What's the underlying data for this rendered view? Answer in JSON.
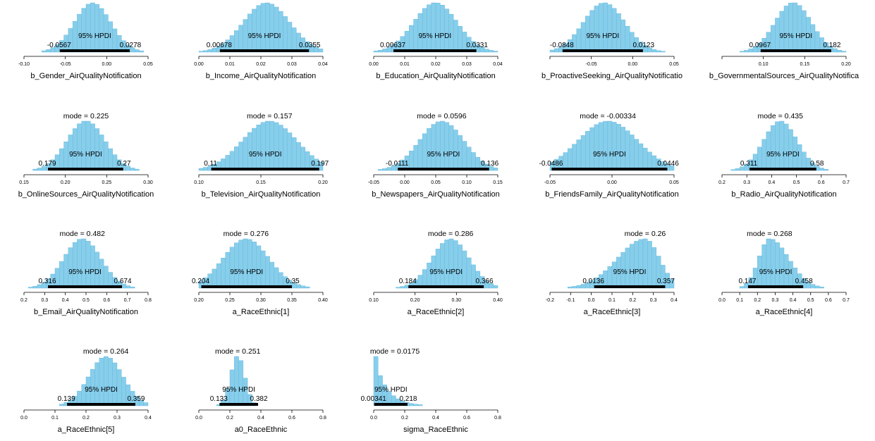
{
  "hpdi_label": "95% HPDI",
  "mode_prefix": "mode = ",
  "colors": {
    "bar": "#87ceeb",
    "bar_edge": "#5fb3d9",
    "hpdi": "#000000",
    "text": "#000000"
  },
  "chart_data": [
    {
      "type": "histogram",
      "xlabel": "b_Gender_AirQualityNotification",
      "mode": "-0.0171",
      "hpdi": [
        "-0.0567",
        "0.0278"
      ],
      "xlim": [
        -0.1,
        0.05
      ],
      "ticks": [
        "-0.10",
        "-0.05",
        "0.00",
        "0.05"
      ],
      "tick_values": [
        -0.1,
        -0.05,
        0,
        0.05
      ],
      "mode_value": -0.0171,
      "spread": 0.022
    },
    {
      "type": "histogram",
      "xlabel": "b_Income_AirQualityNotification",
      "mode": "0.0218",
      "hpdi": [
        "0.00678",
        "0.0355"
      ],
      "xlim": [
        0,
        0.04
      ],
      "ticks": [
        "0.00",
        "0.01",
        "0.02",
        "0.03",
        "0.04"
      ],
      "tick_values": [
        0,
        0.01,
        0.02,
        0.03,
        0.04
      ],
      "mode_value": 0.0218,
      "spread": 0.0075
    },
    {
      "type": "histogram",
      "xlabel": "b_Education_AirQualityNotification",
      "mode": "0.0199",
      "hpdi": [
        "0.00637",
        "0.0331"
      ],
      "xlim": [
        0,
        0.04
      ],
      "ticks": [
        "0.00",
        "0.01",
        "0.02",
        "0.03",
        "0.04"
      ],
      "tick_values": [
        0,
        0.01,
        0.02,
        0.03,
        0.04
      ],
      "mode_value": 0.0199,
      "spread": 0.007
    },
    {
      "type": "histogram",
      "xlabel": "b_ProactiveSeeking_AirQualityNotificatio",
      "mode": "-0.0346",
      "hpdi": [
        "-0.0848",
        "0.0123"
      ],
      "xlim": [
        -0.1,
        0.05
      ],
      "ticks": [
        "",
        "-0.05",
        "0.00",
        "0.05"
      ],
      "tick_values": [
        -0.1,
        -0.05,
        0,
        0.05
      ],
      "mode_value": -0.0346,
      "spread": 0.025
    },
    {
      "type": "histogram",
      "xlabel": "b_GovernmentalSources_AirQualityNotifica",
      "mode": "0.136",
      "hpdi": [
        "0.0967",
        "0.182"
      ],
      "xlim": [
        0.05,
        0.2
      ],
      "ticks": [
        "",
        "0.10",
        "0.15",
        "0.20"
      ],
      "tick_values": [
        0.05,
        0.1,
        0.15,
        0.2
      ],
      "mode_value": 0.136,
      "spread": 0.022
    },
    {
      "type": "histogram",
      "xlabel": "b_OnlineSources_AirQualityNotification",
      "mode": "0.225",
      "hpdi": [
        "0.179",
        "0.27"
      ],
      "xlim": [
        0.15,
        0.3
      ],
      "ticks": [
        "0.15",
        "0.20",
        "0.25",
        "0.30"
      ],
      "tick_values": [
        0.15,
        0.2,
        0.25,
        0.3
      ],
      "mode_value": 0.225,
      "spread": 0.023
    },
    {
      "type": "histogram",
      "xlabel": "b_Television_AirQualityNotification",
      "mode": "0.157",
      "hpdi": [
        "0.11",
        "0.197"
      ],
      "xlim": [
        0.1,
        0.2
      ],
      "ticks": [
        "0.10",
        "0.15",
        "0.20"
      ],
      "tick_values": [
        0.1,
        0.15,
        0.2
      ],
      "mode_value": 0.157,
      "spread": 0.022
    },
    {
      "type": "histogram",
      "xlabel": "b_Newspapers_AirQualityNotification",
      "mode": "0.0596",
      "hpdi": [
        "-0.0111",
        "0.136"
      ],
      "xlim": [
        -0.05,
        0.15
      ],
      "ticks": [
        "-0.05",
        "0.00",
        "0.05",
        "0.10",
        "0.15"
      ],
      "tick_values": [
        -0.05,
        0,
        0.05,
        0.1,
        0.15
      ],
      "mode_value": 0.0596,
      "spread": 0.036
    },
    {
      "type": "histogram",
      "xlabel": "b_FriendsFamily_AirQualityNotification",
      "mode": "-0.00334",
      "hpdi": [
        "-0.0486",
        "0.0446"
      ],
      "xlim": [
        -0.05,
        0.05
      ],
      "ticks": [
        "-0.05",
        "0.00",
        "0.05"
      ],
      "tick_values": [
        -0.05,
        0,
        0.05
      ],
      "mode_value": -0.00334,
      "spread": 0.024
    },
    {
      "type": "histogram",
      "xlabel": "b_Radio_AirQualityNotification",
      "mode": "0.435",
      "hpdi": [
        "0.311",
        "0.58"
      ],
      "xlim": [
        0.2,
        0.7
      ],
      "ticks": [
        "0.2",
        "0.3",
        "0.4",
        "0.5",
        "0.6",
        "0.7"
      ],
      "tick_values": [
        0.2,
        0.3,
        0.4,
        0.5,
        0.6,
        0.7
      ],
      "mode_value": 0.435,
      "spread": 0.068
    },
    {
      "type": "histogram",
      "xlabel": "b_Email_AirQualityNotification",
      "mode": "0.482",
      "hpdi": [
        "0.316",
        "0.674"
      ],
      "xlim": [
        0.2,
        0.8
      ],
      "ticks": [
        "0.2",
        "0.3",
        "0.4",
        "0.5",
        "0.6",
        "0.7",
        "0.8"
      ],
      "tick_values": [
        0.2,
        0.3,
        0.4,
        0.5,
        0.6,
        0.7,
        0.8
      ],
      "mode_value": 0.482,
      "spread": 0.09
    },
    {
      "type": "histogram",
      "xlabel": "a_RaceEthnic[1]",
      "mode": "0.276",
      "hpdi": [
        "0.204",
        "0.35"
      ],
      "xlim": [
        0.2,
        0.4
      ],
      "ticks": [
        "0.20",
        "0.25",
        "0.30",
        "0.35",
        "0.40"
      ],
      "tick_values": [
        0.2,
        0.25,
        0.3,
        0.35,
        0.4
      ],
      "mode_value": 0.276,
      "spread": 0.037
    },
    {
      "type": "histogram",
      "xlabel": "a_RaceEthnic[2]",
      "mode": "0.286",
      "hpdi": [
        "0.184",
        "0.366"
      ],
      "xlim": [
        0.1,
        0.4
      ],
      "ticks": [
        "0.10",
        "0.20",
        "0.30",
        "0.40"
      ],
      "tick_values": [
        0.1,
        0.2,
        0.3,
        0.4
      ],
      "mode_value": 0.286,
      "spread": 0.045
    },
    {
      "type": "histogram",
      "xlabel": "a_RaceEthnic[3]",
      "mode": "0.26",
      "hpdi": [
        "0.0136",
        "0.357"
      ],
      "xlim": [
        -0.2,
        0.4
      ],
      "ticks": [
        "-0.2",
        "-0.1",
        "0.0",
        "0.1",
        "0.2",
        "0.3",
        "0.4"
      ],
      "tick_values": [
        -0.2,
        -0.1,
        0,
        0.1,
        0.2,
        0.3,
        0.4
      ],
      "mode_value": 0.26,
      "spread": 0.07,
      "skew": "left"
    },
    {
      "type": "histogram",
      "xlabel": "a_RaceEthnic[4]",
      "mode": "0.268",
      "hpdi": [
        "0.147",
        "0.458"
      ],
      "xlim": [
        0,
        0.7
      ],
      "ticks": [
        "0.0",
        "0.1",
        "0.2",
        "0.3",
        "0.4",
        "0.5",
        "0.6",
        "0.7"
      ],
      "tick_values": [
        0,
        0.1,
        0.2,
        0.3,
        0.4,
        0.5,
        0.6,
        0.7
      ],
      "mode_value": 0.268,
      "spread": 0.06,
      "skew": "right"
    },
    {
      "type": "histogram",
      "xlabel": "a_RaceEthnic[5]",
      "mode": "0.264",
      "hpdi": [
        "0.139",
        "0.359"
      ],
      "xlim": [
        0,
        0.4
      ],
      "ticks": [
        "0.0",
        "0.1",
        "0.2",
        "0.3",
        "0.4"
      ],
      "tick_values": [
        0,
        0.1,
        0.2,
        0.3,
        0.4
      ],
      "mode_value": 0.264,
      "spread": 0.055
    },
    {
      "type": "histogram",
      "xlabel": "a0_RaceEthnic",
      "mode": "0.251",
      "hpdi": [
        "0.133",
        "0.382"
      ],
      "xlim": [
        0,
        0.8
      ],
      "ticks": [
        "0.0",
        "0.2",
        "0.4",
        "0.6",
        "0.8"
      ],
      "tick_values": [
        0,
        0.2,
        0.4,
        0.6,
        0.8
      ],
      "mode_value": 0.251,
      "spread": 0.045
    },
    {
      "type": "histogram",
      "xlabel": "sigma_RaceEthnic",
      "mode": "0.0175",
      "hpdi": [
        "0.00341",
        "0.218"
      ],
      "xlim": [
        0,
        0.8
      ],
      "ticks": [
        "0.0",
        "0.2",
        "0.4",
        "0.6",
        "0.8"
      ],
      "tick_values": [
        0,
        0.2,
        0.4,
        0.6,
        0.8
      ],
      "mode_value": 0.0175,
      "spread": 0.06,
      "skew": "exp"
    }
  ]
}
